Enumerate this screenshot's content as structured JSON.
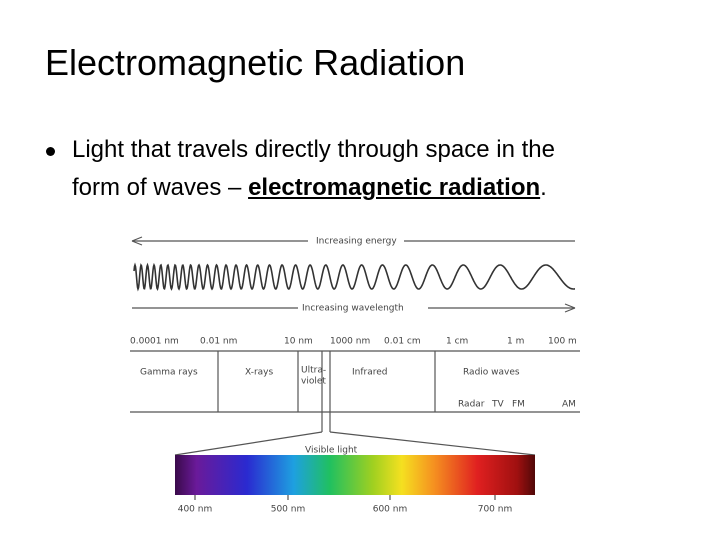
{
  "header": {
    "title": "Electromagnetic Radiation"
  },
  "bullet": {
    "line1": "Light that travels directly through space in the",
    "line2": "form of waves – ",
    "emphasis": "electromagnetic radiation",
    "end": "."
  },
  "diagram": {
    "energy_arrow": "Increasing energy",
    "wavelength_arrow": "Increasing wavelength",
    "scale": [
      "0.0001 nm",
      "0.01 nm",
      "10 nm",
      "1000 nm",
      "0.01 cm",
      "1 cm",
      "1 m",
      "100 m"
    ],
    "regions": {
      "gamma": "Gamma rays",
      "xray": "X-rays",
      "uv": [
        "Ultra-",
        "violet"
      ],
      "ir": "Infrared",
      "radio": "Radio waves"
    },
    "radio_bands": [
      "Radar",
      "TV",
      "FM",
      "AM"
    ],
    "visible": "Visible light",
    "spectrum_ticks": [
      "400 nm",
      "500 nm",
      "600 nm",
      "700 nm"
    ]
  }
}
